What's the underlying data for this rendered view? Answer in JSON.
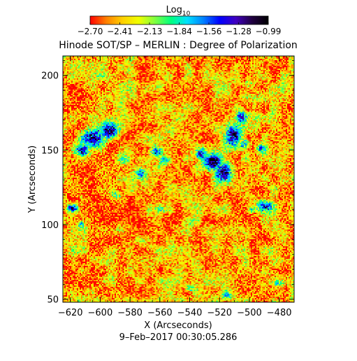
{
  "chart_data": {
    "type": "heatmap",
    "title": "Hinode SOT/SP – MERLIN : Degree of Polarization",
    "subtitle": "9–Feb–2017 00:30:05.286",
    "xlabel": "X (Arcseconds)",
    "ylabel": "Y (Arcseconds)",
    "xlim": [
      -625,
      -470
    ],
    "ylim": [
      48,
      213
    ],
    "x_ticks": [
      -620,
      -600,
      -580,
      -560,
      -540,
      -520,
      -500,
      -480
    ],
    "y_ticks": [
      50,
      100,
      150,
      200
    ],
    "x_tick_labels": [
      "-620",
      "-600",
      "-580",
      "-560",
      "-540",
      "-520",
      "-500",
      "-480"
    ],
    "y_tick_labels": [
      "50",
      "100",
      "150",
      "200"
    ],
    "colorbar": {
      "label_base": "Log",
      "label_sub": "10",
      "min": -2.7,
      "max": -0.99,
      "tick_labels": [
        "-2.70",
        "-2.41",
        "-2.13",
        "-1.84",
        "-1.56",
        "-1.28",
        "-0.99"
      ],
      "colors": [
        "#ff0000",
        "#ff8000",
        "#ffd000",
        "#f0ff00",
        "#80ff40",
        "#00ff80",
        "#00e0ff",
        "#0080ff",
        "#0000ff",
        "#4000c0",
        "#200040",
        "#000000"
      ]
    },
    "background_level": -2.45,
    "regions": [
      {
        "x": -605,
        "y": 158,
        "rx": 10,
        "ry": 9,
        "peak": -1.1
      },
      {
        "x": -594,
        "y": 163,
        "rx": 7,
        "ry": 7,
        "peak": -1.05
      },
      {
        "x": -612,
        "y": 150,
        "rx": 6,
        "ry": 5,
        "peak": -1.3
      },
      {
        "x": -583,
        "y": 144,
        "rx": 5,
        "ry": 4,
        "peak": -1.8
      },
      {
        "x": -573,
        "y": 134,
        "rx": 4,
        "ry": 4,
        "peak": -1.7
      },
      {
        "x": -562,
        "y": 149,
        "rx": 5,
        "ry": 5,
        "peak": -1.25
      },
      {
        "x": -557,
        "y": 143,
        "rx": 4,
        "ry": 4,
        "peak": -1.6
      },
      {
        "x": -525,
        "y": 142,
        "rx": 8,
        "ry": 7,
        "peak": -1.0
      },
      {
        "x": -517,
        "y": 135,
        "rx": 7,
        "ry": 8,
        "peak": -1.0
      },
      {
        "x": -532,
        "y": 147,
        "rx": 5,
        "ry": 5,
        "peak": -1.3
      },
      {
        "x": -510,
        "y": 160,
        "rx": 7,
        "ry": 9,
        "peak": -1.05
      },
      {
        "x": -505,
        "y": 172,
        "rx": 5,
        "ry": 5,
        "peak": -1.3
      },
      {
        "x": -503,
        "y": 154,
        "rx": 5,
        "ry": 5,
        "peak": -1.5
      },
      {
        "x": -492,
        "y": 151,
        "rx": 5,
        "ry": 4,
        "peak": -1.6
      },
      {
        "x": -490,
        "y": 112,
        "rx": 7,
        "ry": 5,
        "peak": -1.3
      },
      {
        "x": -498,
        "y": 110,
        "rx": 4,
        "ry": 3,
        "peak": -1.7
      },
      {
        "x": -619,
        "y": 111,
        "rx": 5,
        "ry": 3,
        "peak": -1.4
      },
      {
        "x": -613,
        "y": 100,
        "rx": 3,
        "ry": 3,
        "peak": -1.8
      },
      {
        "x": -590,
        "y": 120,
        "rx": 5,
        "ry": 4,
        "peak": -1.9
      },
      {
        "x": -540,
        "y": 102,
        "rx": 4,
        "ry": 3,
        "peak": -1.9
      },
      {
        "x": -560,
        "y": 110,
        "rx": 4,
        "ry": 3,
        "peak": -2.0
      },
      {
        "x": -540,
        "y": 57,
        "rx": 4,
        "ry": 3,
        "peak": -1.8
      },
      {
        "x": -515,
        "y": 52,
        "rx": 4,
        "ry": 3,
        "peak": -1.8
      },
      {
        "x": -480,
        "y": 60,
        "rx": 4,
        "ry": 3,
        "peak": -1.9
      },
      {
        "x": -600,
        "y": 200,
        "rx": 4,
        "ry": 3,
        "peak": -2.0
      },
      {
        "x": -500,
        "y": 195,
        "rx": 5,
        "ry": 4,
        "peak": -2.1
      }
    ]
  }
}
